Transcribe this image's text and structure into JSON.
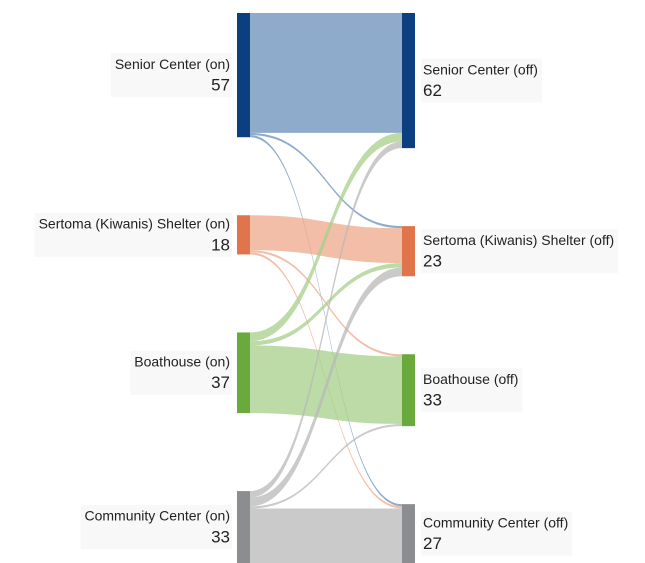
{
  "chart_data": {
    "type": "sankey",
    "nodes": [
      {
        "name": "Senior Center (on)",
        "value": 57,
        "color": "#0b3f7f",
        "column": 0
      },
      {
        "name": "Sertoma (Kiwanis) Shelter (on)",
        "value": 18,
        "color": "#e0744a",
        "column": 0
      },
      {
        "name": "Boathouse (on)",
        "value": 37,
        "color": "#6aaa3c",
        "column": 0
      },
      {
        "name": "Community Center (on)",
        "value": 33,
        "color": "#8b8d90",
        "column": 0
      },
      {
        "name": "Senior Center (off)",
        "value": 62,
        "color": "#0b3f7f",
        "column": 1
      },
      {
        "name": "Sertoma (Kiwanis) Shelter (off)",
        "value": 23,
        "color": "#e0744a",
        "column": 1
      },
      {
        "name": "Boathouse (off)",
        "value": 33,
        "color": "#6aaa3c",
        "column": 1
      },
      {
        "name": "Community Center (off)",
        "value": 27,
        "color": "#8b8d90",
        "column": 1
      }
    ],
    "links": [
      {
        "source": 0,
        "target": 4,
        "value": 55,
        "color": "#6a8fbb"
      },
      {
        "source": 0,
        "target": 5,
        "value": 1,
        "color": "#6a8fbb"
      },
      {
        "source": 0,
        "target": 7,
        "value": 1,
        "color": "#6a8fbb"
      },
      {
        "source": 1,
        "target": 5,
        "value": 16,
        "color": "#efa88a"
      },
      {
        "source": 1,
        "target": 6,
        "value": 1,
        "color": "#efa88a"
      },
      {
        "source": 1,
        "target": 7,
        "value": 1,
        "color": "#efa88a"
      },
      {
        "source": 2,
        "target": 4,
        "value": 4,
        "color": "#a6cf8a"
      },
      {
        "source": 2,
        "target": 5,
        "value": 2,
        "color": "#a6cf8a"
      },
      {
        "source": 2,
        "target": 6,
        "value": 31,
        "color": "#a6cf8a"
      },
      {
        "source": 3,
        "target": 4,
        "value": 3,
        "color": "#b8b8b8"
      },
      {
        "source": 3,
        "target": 5,
        "value": 4,
        "color": "#b8b8b8"
      },
      {
        "source": 3,
        "target": 6,
        "value": 1,
        "color": "#b8b8b8"
      },
      {
        "source": 3,
        "target": 7,
        "value": 25,
        "color": "#b8b8b8"
      }
    ]
  }
}
